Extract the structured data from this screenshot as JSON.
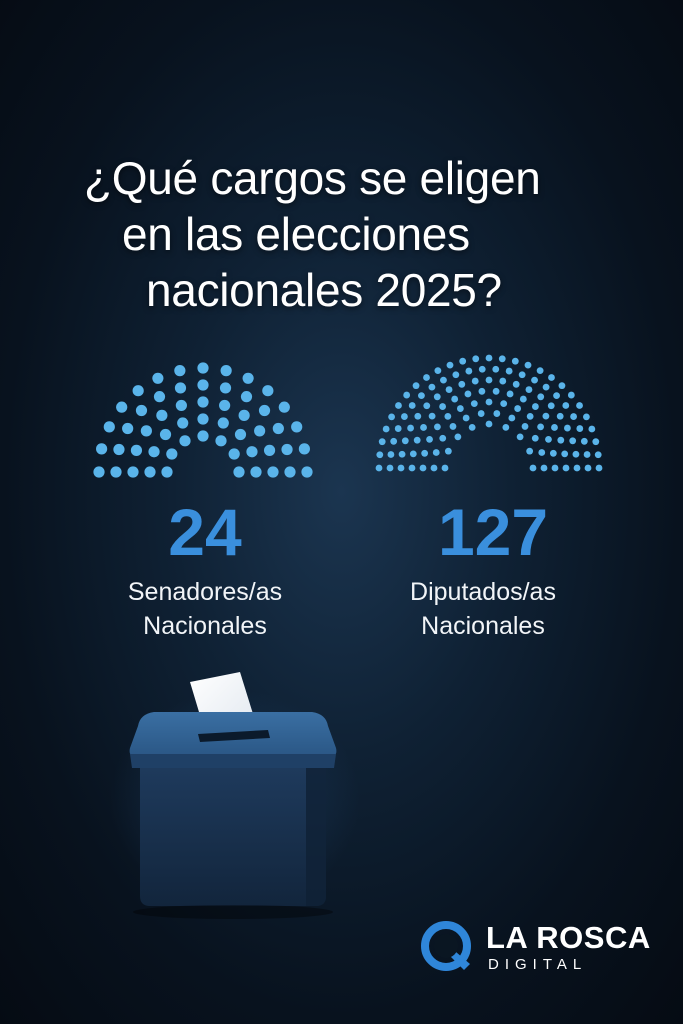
{
  "title": {
    "line1": "¿Qué cargos se eligen",
    "line2": "en las elecciones",
    "line3": "nacionales 2025?"
  },
  "senate": {
    "count": "24",
    "label_line1": "Senadores/as",
    "label_line2": "Nacionales"
  },
  "deputies": {
    "count": "127",
    "label_line1": "Diputados/as",
    "label_line2": "Nacionales"
  },
  "brand": {
    "name": "LA ROSCA",
    "sub": "DIGITAL"
  },
  "colors": {
    "accent": "#3a8fdd",
    "seat": "#5ab4ea",
    "background": "#0a1622"
  },
  "icons": [
    "senate-hemicycle-icon",
    "deputies-hemicycle-icon",
    "ballot-box-icon",
    "brand-logo-icon"
  ]
}
